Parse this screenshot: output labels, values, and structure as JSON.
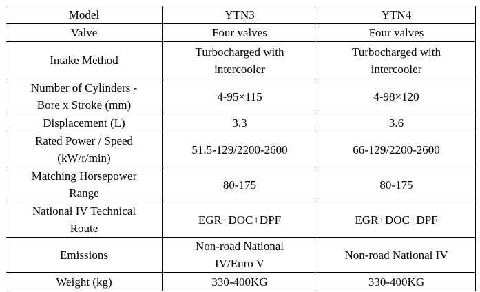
{
  "table": {
    "rows": [
      [
        [
          "Model"
        ],
        [
          "YTN3"
        ],
        [
          "YTN4"
        ]
      ],
      [
        [
          "Valve"
        ],
        [
          "Four valves"
        ],
        [
          "Four valves"
        ]
      ],
      [
        [
          "Intake Method"
        ],
        [
          "Turbocharged with",
          "intercooler"
        ],
        [
          "Turbocharged with",
          "intercooler"
        ]
      ],
      [
        [
          "Number of Cylinders -",
          "Bore x Stroke (mm)"
        ],
        [
          "4-95×115"
        ],
        [
          "4-98×120"
        ]
      ],
      [
        [
          "Displacement (L)"
        ],
        [
          "3.3"
        ],
        [
          "3.6"
        ]
      ],
      [
        [
          "Rated Power / Speed",
          "(kW/r/min)"
        ],
        [
          "51.5-129/2200-2600"
        ],
        [
          "66-129/2200-2600"
        ]
      ],
      [
        [
          "Matching Horsepower",
          "Range"
        ],
        [
          "80-175"
        ],
        [
          "80-175"
        ]
      ],
      [
        [
          "National IV Technical",
          "Route"
        ],
        [
          "EGR+DOC+DPF"
        ],
        [
          "EGR+DOC+DPF"
        ]
      ],
      [
        [
          "Emissions"
        ],
        [
          "Non-road National",
          "IV/Euro V"
        ],
        [
          "Non-road National IV"
        ]
      ],
      [
        [
          "Weight (kg)"
        ],
        [
          "330-400KG"
        ],
        [
          "330-400KG"
        ]
      ]
    ]
  }
}
